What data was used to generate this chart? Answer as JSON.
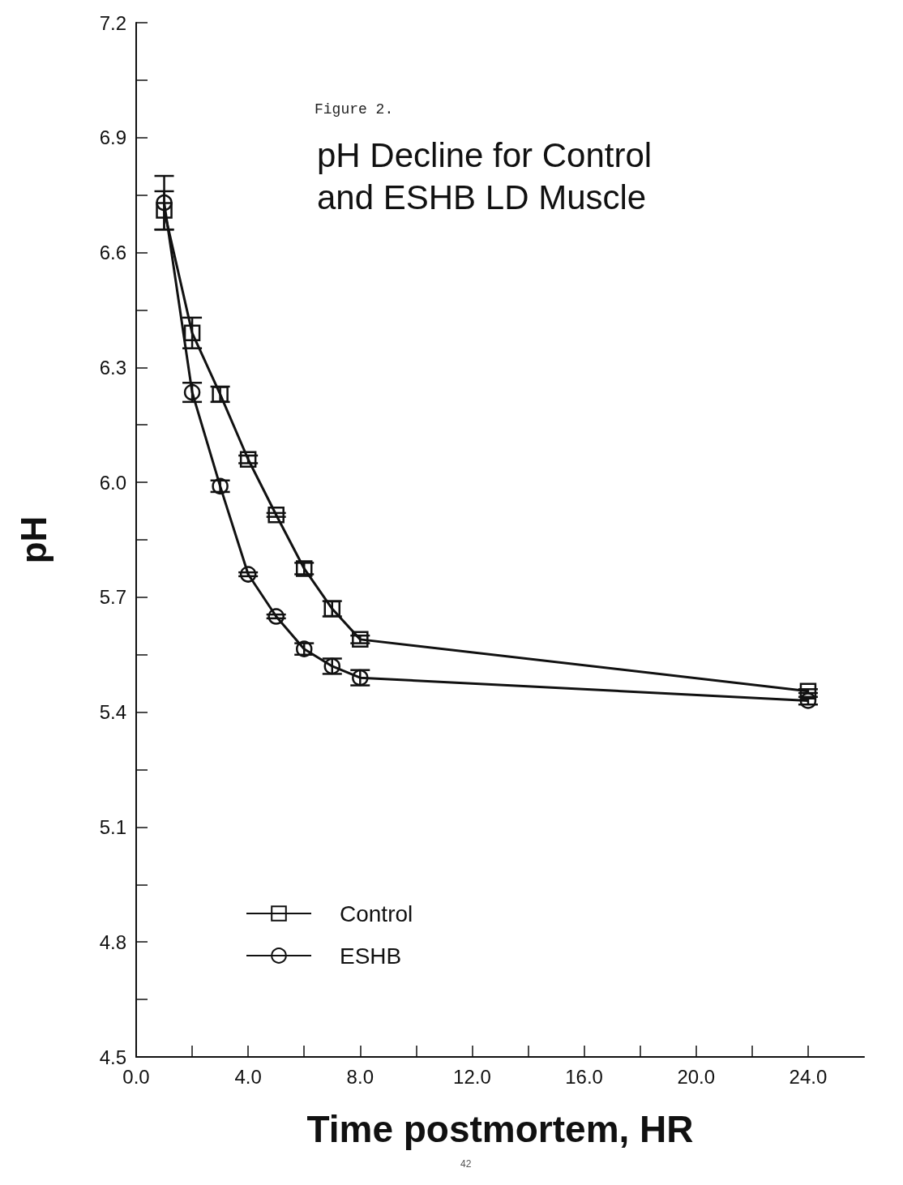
{
  "chart_data": {
    "type": "line",
    "title": "pH Decline for Control and ESHB LD Muscle",
    "xlabel": "Time postmortem, HR",
    "ylabel": "pH",
    "annotations": [
      "Figure 2.",
      "42"
    ],
    "x": [
      1,
      2,
      3,
      4,
      5,
      6,
      7,
      8,
      24
    ],
    "series": [
      {
        "name": "Control",
        "color": "#111111",
        "marker": "square",
        "values": [
          6.71,
          6.39,
          6.23,
          6.06,
          5.915,
          5.775,
          5.67,
          5.59,
          5.455
        ],
        "errors": [
          0.05,
          0.04,
          0.02,
          0.01,
          0.005,
          0.015,
          0.02,
          0.01,
          0.005
        ]
      },
      {
        "name": "ESHB",
        "color": "#111111",
        "marker": "circle",
        "values": [
          6.73,
          6.235,
          5.99,
          5.76,
          5.65,
          5.565,
          5.52,
          5.49,
          5.43
        ],
        "errors": [
          0.07,
          0.025,
          0.015,
          0.005,
          0.005,
          0.015,
          0.02,
          0.02,
          0.01
        ]
      }
    ],
    "xlim": [
      0,
      26
    ],
    "xticks": [
      {
        "value": 0,
        "label": "0.0"
      },
      {
        "value": 2,
        "label": null
      },
      {
        "value": 4,
        "label": "4.0"
      },
      {
        "value": 6,
        "label": null
      },
      {
        "value": 8,
        "label": "8.0"
      },
      {
        "value": 10,
        "label": null
      },
      {
        "value": 12,
        "label": "12.0"
      },
      {
        "value": 14,
        "label": null
      },
      {
        "value": 16,
        "label": "16.0"
      },
      {
        "value": 18,
        "label": null
      },
      {
        "value": 20,
        "label": "20.0"
      },
      {
        "value": 22,
        "label": null
      },
      {
        "value": 24,
        "label": "24.0"
      }
    ],
    "ylim": [
      4.5,
      7.2
    ],
    "yticks": [
      {
        "value": 4.5,
        "label": "4.5"
      },
      {
        "value": 4.65,
        "label": null
      },
      {
        "value": 4.8,
        "label": "4.8"
      },
      {
        "value": 4.95,
        "label": null
      },
      {
        "value": 5.1,
        "label": "5.1"
      },
      {
        "value": 5.25,
        "label": null
      },
      {
        "value": 5.4,
        "label": "5.4"
      },
      {
        "value": 5.55,
        "label": null
      },
      {
        "value": 5.7,
        "label": "5.7"
      },
      {
        "value": 5.85,
        "label": null
      },
      {
        "value": 6,
        "label": "6.0"
      },
      {
        "value": 6.15,
        "label": null
      },
      {
        "value": 6.3,
        "label": "6.3"
      },
      {
        "value": 6.45,
        "label": null
      },
      {
        "value": 6.6,
        "label": "6.6"
      },
      {
        "value": 6.75,
        "label": null
      },
      {
        "value": 6.9,
        "label": "6.9"
      },
      {
        "value": 7.05,
        "label": null
      },
      {
        "value": 7.2,
        "label": "7.2"
      }
    ],
    "grid": false,
    "legend": "bottom left",
    "line_style": "solid"
  }
}
